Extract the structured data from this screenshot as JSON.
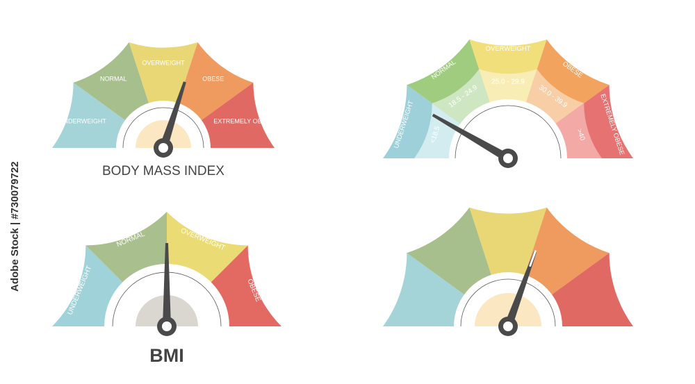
{
  "watermark": "Adobe Stock | #730079722",
  "gauges": [
    {
      "title": "BODY MASS INDEX",
      "segments": [
        {
          "label": "UNDERWEIGHT"
        },
        {
          "label": "NORMAL"
        },
        {
          "label": "OVERWEIGHT"
        },
        {
          "label": "OBESE"
        },
        {
          "label": "EXTREMELY OBESE"
        }
      ]
    },
    {
      "segments": [
        {
          "label": "UNDERWEIGHT",
          "range": "<18.5"
        },
        {
          "label": "NORMAL",
          "range": "18.5 - 24.9"
        },
        {
          "label": "OVERWEIGHT",
          "range": "25.0 - 29.9"
        },
        {
          "label": "OBESE",
          "range": "30.0 - 39.9"
        },
        {
          "label": "EXTREMELY OBESE",
          "range": ">40"
        }
      ]
    },
    {
      "title": "BMI",
      "segments": [
        {
          "label": "UNDERWEIGHT"
        },
        {
          "label": "NORMAL"
        },
        {
          "label": "OVERWEIGHT"
        },
        {
          "label": "OBESE"
        }
      ]
    },
    {
      "segments": [
        {},
        {},
        {},
        {},
        {}
      ]
    }
  ]
}
